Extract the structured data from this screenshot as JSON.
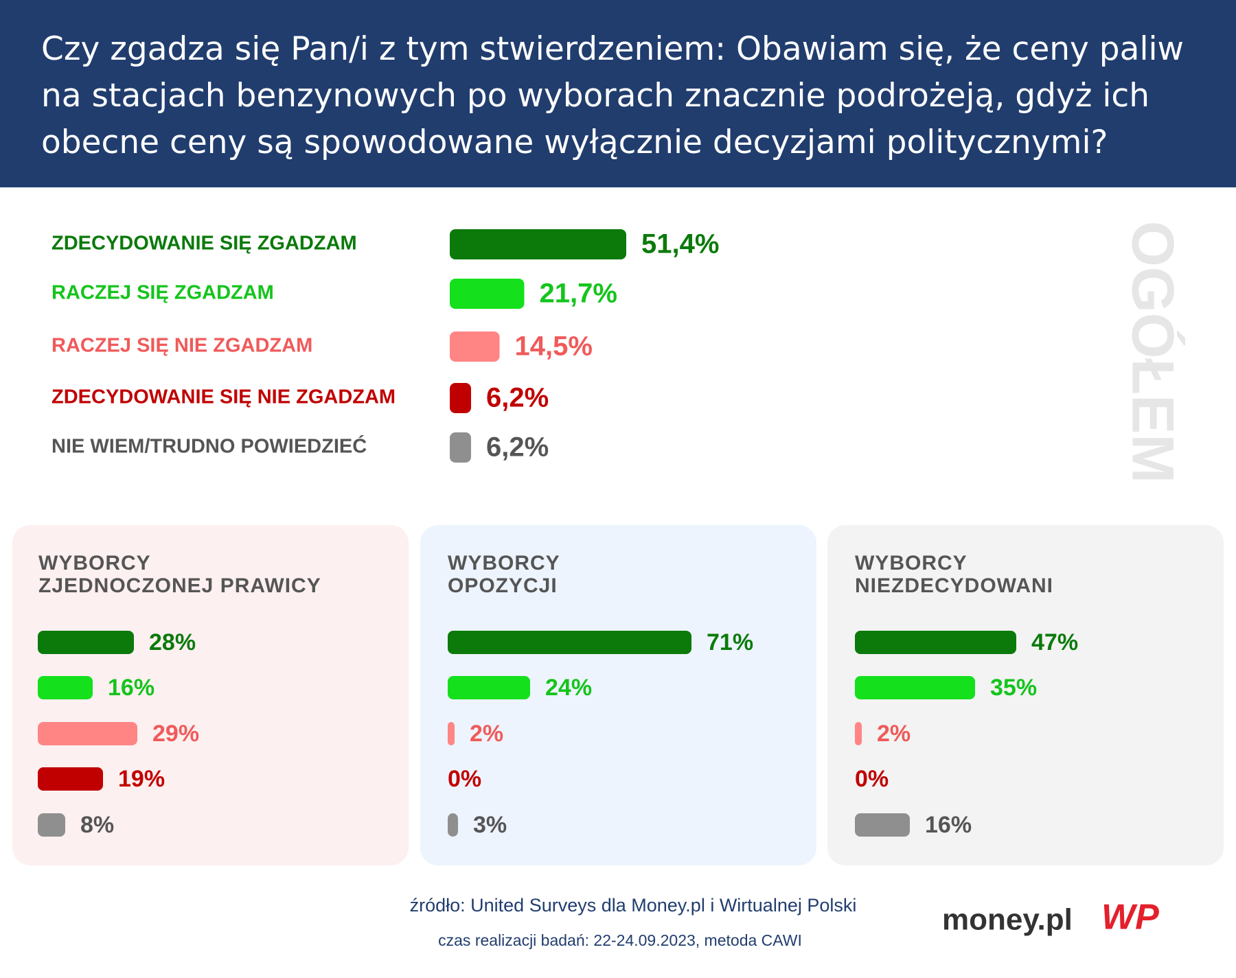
{
  "header": {
    "title": "Czy zgadza się Pan/i z tym stwierdzeniem: Obawiam się, że ceny paliw na stacjach benzynowych po wyborach znacznie podrożeją, gdyż ich obecne ceny są spowodowane wyłącznie decyzjami politycznymi?"
  },
  "chart_data": [
    {
      "type": "bar",
      "orientation": "horizontal",
      "title": "OGÓŁEM",
      "categories": [
        "ZDECYDOWANIE SIĘ ZGADZAM",
        "RACZEJ SIĘ ZGADZAM",
        "RACZEJ SIĘ NIE ZGADZAM",
        "ZDECYDOWANIE SIĘ NIE ZGADZAM",
        "NIE WIEM/TRUDNO POWIEDZIEĆ"
      ],
      "values": [
        51.4,
        21.7,
        14.5,
        6.2,
        6.2
      ],
      "value_labels": [
        "51,4%",
        "21,7%",
        "14,5%",
        "6,2%",
        "6,2%"
      ],
      "colors": [
        "#0b7a0b",
        "#14e01c",
        "#ff8585",
        "#c00000",
        "#8f8f8f"
      ],
      "text_colors": [
        "#0b7a0b",
        "#14c41c",
        "#f05a5a",
        "#c00000",
        "#555555"
      ]
    },
    {
      "type": "bar",
      "orientation": "horizontal",
      "title": "WYBORCY\nZJEDNOCZONEJ PRAWICY",
      "values": [
        28,
        16,
        29,
        19,
        8
      ],
      "value_labels": [
        "28%",
        "16%",
        "29%",
        "19%",
        "8%"
      ],
      "colors": [
        "#0b7a0b",
        "#14e01c",
        "#ff8585",
        "#c00000",
        "#8f8f8f"
      ],
      "text_colors": [
        "#0b7a0b",
        "#14c41c",
        "#f05a5a",
        "#c00000",
        "#555555"
      ]
    },
    {
      "type": "bar",
      "orientation": "horizontal",
      "title": "WYBORCY\nOPOZYCJI",
      "values": [
        71,
        24,
        2,
        0,
        3
      ],
      "value_labels": [
        "71%",
        "24%",
        "2%",
        "0%",
        "3%"
      ],
      "colors": [
        "#0b7a0b",
        "#14e01c",
        "#ff8585",
        "#c00000",
        "#8f8f8f"
      ],
      "text_colors": [
        "#0b7a0b",
        "#14c41c",
        "#f05a5a",
        "#c00000",
        "#555555"
      ]
    },
    {
      "type": "bar",
      "orientation": "horizontal",
      "title": "WYBORCY\nNIEZDECYDOWANI",
      "values": [
        47,
        35,
        2,
        0,
        16
      ],
      "value_labels": [
        "47%",
        "35%",
        "2%",
        "0%",
        "16%"
      ],
      "colors": [
        "#0b7a0b",
        "#14e01c",
        "#ff8585",
        "#c00000",
        "#8f8f8f"
      ],
      "text_colors": [
        "#0b7a0b",
        "#14c41c",
        "#f05a5a",
        "#c00000",
        "#555555"
      ]
    }
  ],
  "footer": {
    "source": "źródło: United Surveys dla Money.pl i Wirtualnej Polski",
    "note": "czas realizacji badań: 22-24.09.2023, metoda CAWI",
    "brand": "money.pl",
    "logo": "WP"
  }
}
